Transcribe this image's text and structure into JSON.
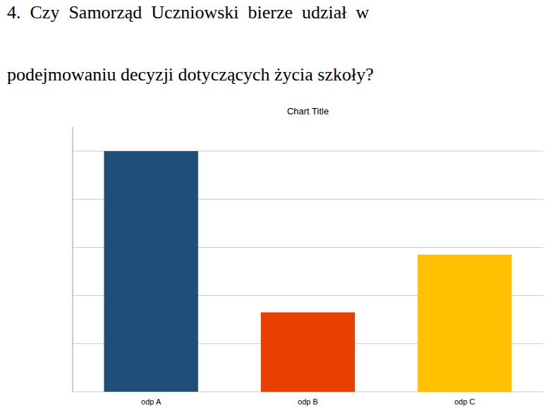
{
  "chart_data": {
    "type": "bar",
    "title": "Chart Title",
    "annotations": [
      "4.  Czy  Samorząd  Uczniowski  bierze  udział  w",
      "podejmowaniu decyzji dotyczących życia szkoły?"
    ],
    "categories": [
      "odp A",
      "odp B",
      "odp C"
    ],
    "values": [
      100,
      33,
      57
    ],
    "colors": [
      "#1F4E79",
      "#E84000",
      "#FFC000"
    ],
    "ylim": [
      0,
      110
    ],
    "yticks": [
      0,
      20,
      40,
      60,
      80,
      100
    ],
    "grid": true,
    "tick_labels": "x"
  }
}
